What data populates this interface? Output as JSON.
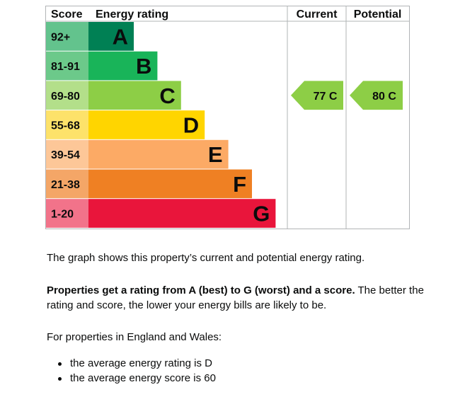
{
  "chart_data": {
    "type": "table",
    "columns": {
      "score": "Score",
      "rating": "Energy rating",
      "current": "Current",
      "potential": "Potential"
    },
    "bands": [
      {
        "letter": "A",
        "range": "92+",
        "color": "#008054",
        "score_color": "#63c38d"
      },
      {
        "letter": "B",
        "range": "81-91",
        "color": "#19b459",
        "score_color": "#6cc98a"
      },
      {
        "letter": "C",
        "range": "69-80",
        "color": "#8dce46",
        "score_color": "#b3df8a"
      },
      {
        "letter": "D",
        "range": "55-68",
        "color": "#ffd500",
        "score_color": "#fde26a"
      },
      {
        "letter": "E",
        "range": "39-54",
        "color": "#fcaa65",
        "score_color": "#fdc798"
      },
      {
        "letter": "F",
        "range": "21-38",
        "color": "#ef8023",
        "score_color": "#f4a667"
      },
      {
        "letter": "G",
        "range": "1-20",
        "color": "#e9153b",
        "score_color": "#f2738a"
      }
    ],
    "current": {
      "score": 77,
      "band": "C",
      "label": "77 C",
      "color": "#8dce46"
    },
    "potential": {
      "score": 80,
      "band": "C",
      "label": "80 C",
      "color": "#8dce46"
    }
  },
  "text": {
    "intro": "The graph shows this property’s current and potential energy rating.",
    "rating_bold": "Properties get a rating from A (best) to G (worst) and a score.",
    "rating_rest": " The better the rating and score, the lower your energy bills are likely to be.",
    "region": "For properties in England and Wales:",
    "average_rating": "the average energy rating is D",
    "average_score": "the average energy score is 60"
  }
}
